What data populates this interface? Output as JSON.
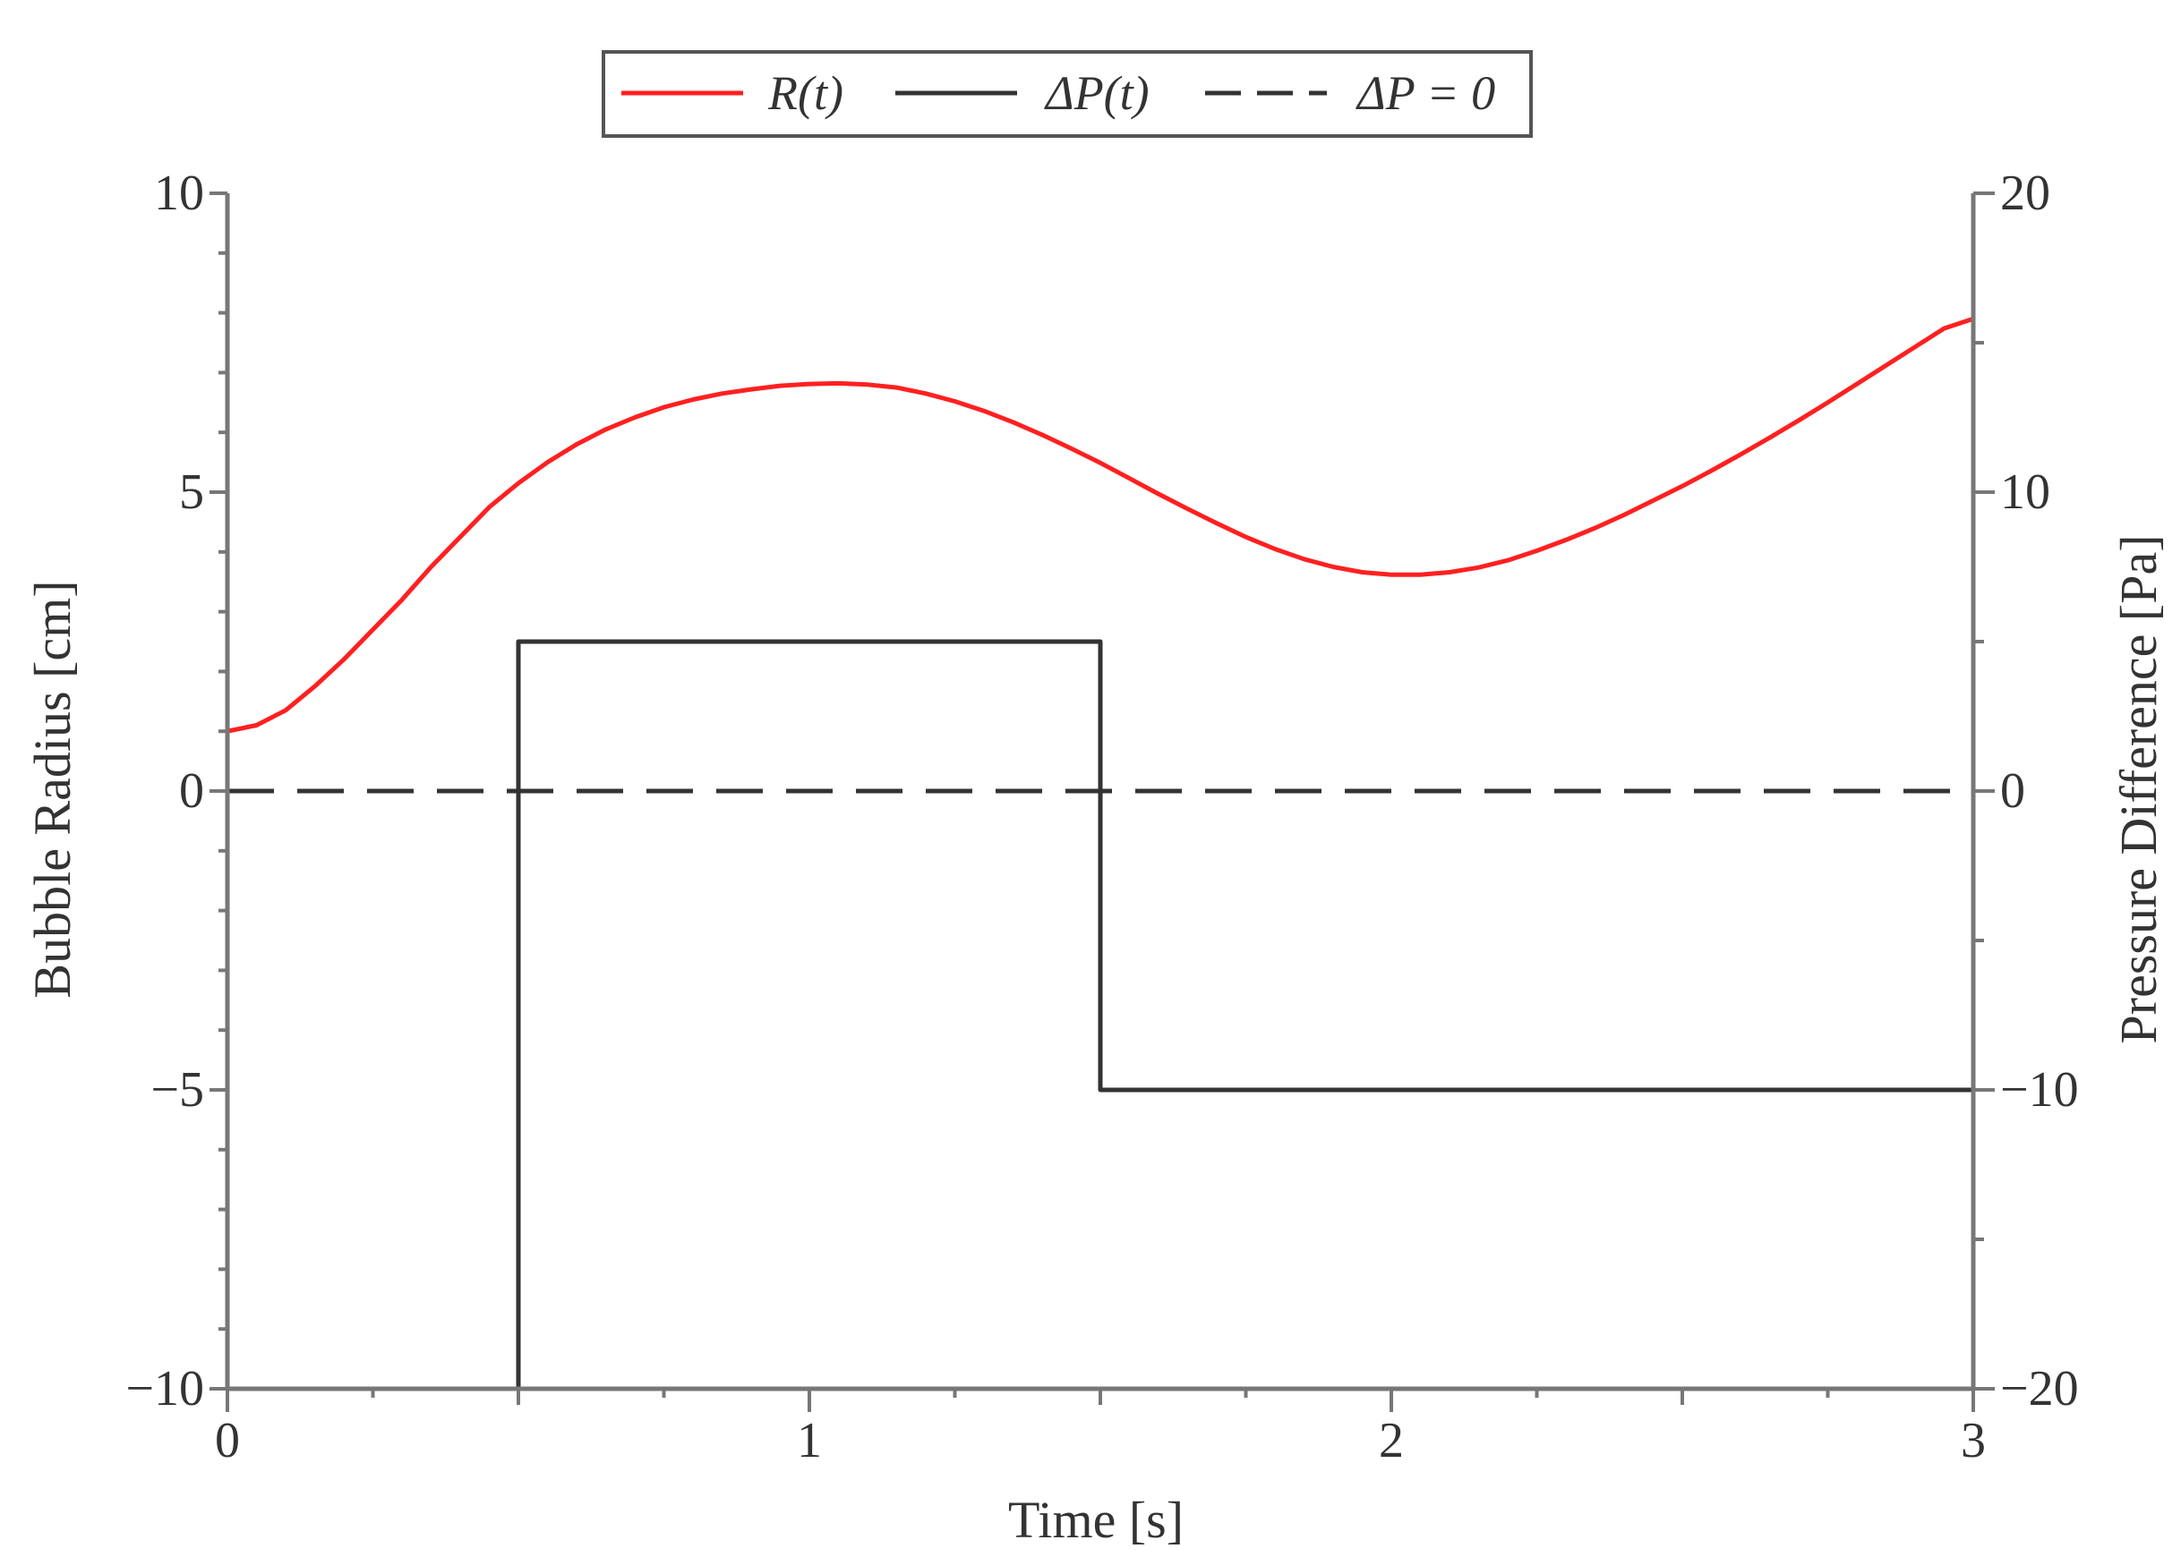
{
  "chart_data": {
    "type": "line",
    "xlabel": "Time [s]",
    "ylabel_left": "Bubble Radius [cm]",
    "ylabel_right": "Pressure Difference [Pa]",
    "xlim": [
      0,
      3
    ],
    "ylim_left": [
      -10,
      10
    ],
    "ylim_right": [
      -20,
      20
    ],
    "x_ticks": [
      0,
      1,
      2,
      3
    ],
    "x_tick_labels": [
      "0",
      "1",
      "2",
      "3"
    ],
    "y_left_ticks": [
      -10,
      -5,
      0,
      5,
      10
    ],
    "y_left_tick_labels": [
      "−10",
      "−5",
      "0",
      "5",
      "10"
    ],
    "y_right_ticks": [
      -20,
      -10,
      0,
      10,
      20
    ],
    "y_right_tick_labels": [
      "−20",
      "−10",
      "0",
      "10",
      "20"
    ],
    "grid": false,
    "legend_position": "top-center",
    "legend": [
      {
        "label": "R(t)",
        "color": "#ff2020",
        "style": "solid"
      },
      {
        "label": "ΔP(t)",
        "color": "#333333",
        "style": "solid"
      },
      {
        "label": "ΔP = 0",
        "color": "#333333",
        "style": "dashed"
      }
    ],
    "series": [
      {
        "name": "R(t)",
        "axis": "left",
        "color": "#ff2020",
        "style": "solid",
        "x": [
          0,
          0.05,
          0.1,
          0.15,
          0.2,
          0.25,
          0.3,
          0.35,
          0.4,
          0.45,
          0.5,
          0.55,
          0.6,
          0.65,
          0.7,
          0.75,
          0.8,
          0.85,
          0.9,
          0.95,
          1.0,
          1.05,
          1.1,
          1.15,
          1.2,
          1.25,
          1.3,
          1.35,
          1.4,
          1.45,
          1.5,
          1.55,
          1.6,
          1.65,
          1.7,
          1.75,
          1.8,
          1.85,
          1.9,
          1.95,
          2.0,
          2.05,
          2.1,
          2.15,
          2.2,
          2.25,
          2.3,
          2.35,
          2.4,
          2.45,
          2.5,
          2.55,
          2.6,
          2.65,
          2.7,
          2.75,
          2.8,
          2.85,
          2.9,
          2.95,
          3.0
        ],
        "y": [
          1.0,
          1.1,
          1.35,
          1.75,
          2.2,
          2.7,
          3.2,
          3.75,
          4.25,
          4.75,
          5.15,
          5.5,
          5.8,
          6.05,
          6.25,
          6.42,
          6.55,
          6.65,
          6.72,
          6.78,
          6.81,
          6.82,
          6.8,
          6.75,
          6.65,
          6.52,
          6.36,
          6.17,
          5.96,
          5.73,
          5.49,
          5.23,
          4.97,
          4.72,
          4.48,
          4.25,
          4.05,
          3.88,
          3.75,
          3.66,
          3.62,
          3.62,
          3.66,
          3.74,
          3.86,
          4.02,
          4.2,
          4.4,
          4.62,
          4.86,
          5.1,
          5.36,
          5.63,
          5.91,
          6.2,
          6.5,
          6.81,
          7.12,
          7.43,
          7.74,
          7.9
        ]
      },
      {
        "name": "ΔP(t)",
        "axis": "right",
        "color": "#333333",
        "style": "solid",
        "x": [
          0,
          0.5,
          0.5,
          1.5,
          1.5,
          3.0
        ],
        "y": [
          -20,
          -20,
          5,
          5,
          -10,
          -10
        ]
      },
      {
        "name": "ΔP = 0",
        "axis": "right",
        "color": "#333333",
        "style": "dashed",
        "x": [
          0,
          3.0
        ],
        "y": [
          0,
          0
        ]
      }
    ]
  }
}
